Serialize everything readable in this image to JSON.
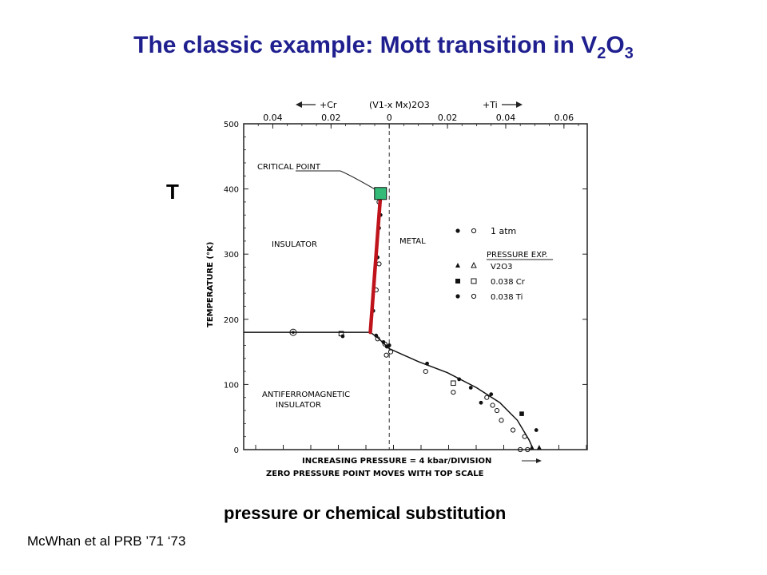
{
  "slide": {
    "title_main": "The classic example: Mott transition in V",
    "title_sub1": "2",
    "title_mid": "O",
    "title_sub2": "3",
    "t_label": "T",
    "caption": "pressure or chemical substitution",
    "citation": "McWhan et al PRB ’71 ‘73"
  },
  "chart_data": {
    "type": "scatter",
    "top_axis": {
      "left_arrow_label": "+Cr",
      "center_label": "(V1-x Mx)2O3",
      "right_arrow_label": "+Ti",
      "ticks": [
        {
          "value": -0.04,
          "label": "0.04"
        },
        {
          "value": -0.02,
          "label": "0.02"
        },
        {
          "value": 0,
          "label": "0"
        },
        {
          "value": 0.02,
          "label": "0.02"
        },
        {
          "value": 0.04,
          "label": "0.04"
        },
        {
          "value": 0.06,
          "label": "0.06"
        }
      ],
      "xlim": [
        -0.05,
        0.068
      ]
    },
    "ylabel": "TEMPERATURE (°K)",
    "yticks": [
      0,
      100,
      200,
      300,
      400,
      500
    ],
    "ylim": [
      0,
      500
    ],
    "xlabel_line1": "INCREASING PRESSURE = 4 kbar/DIVISION",
    "xlabel_line2": "ZERO PRESSURE POINT MOVES WITH TOP SCALE",
    "regions": [
      {
        "label": "INSULATOR"
      },
      {
        "label": "METAL"
      },
      {
        "label_line1": "ANTIFERROMAGNETIC",
        "label_line2": "INSULATOR"
      }
    ],
    "annotation": "CRITICAL POINT",
    "legend": {
      "row1": "1 atm",
      "header": "PRESSURE EXP.",
      "row2": "V2O3",
      "row3": "0.038 Cr",
      "row4": "0.038 Ti"
    },
    "critical_point": {
      "x": -0.003,
      "T": 390
    },
    "transition_line": [
      {
        "x": -0.0065,
        "T": 180
      },
      {
        "x": -0.003,
        "T": 390
      }
    ],
    "afm_boundary": [
      {
        "x": -0.05,
        "T": 180
      },
      {
        "x": -0.0065,
        "T": 180
      },
      {
        "x": -0.004,
        "T": 172
      },
      {
        "x": 0.0,
        "T": 155
      },
      {
        "x": 0.01,
        "T": 135
      },
      {
        "x": 0.02,
        "T": 118
      },
      {
        "x": 0.03,
        "T": 95
      },
      {
        "x": 0.038,
        "T": 72
      },
      {
        "x": 0.044,
        "T": 45
      },
      {
        "x": 0.048,
        "T": 15
      },
      {
        "x": 0.0495,
        "T": 0
      }
    ],
    "points": [
      {
        "x": -0.033,
        "T": 180,
        "m": "bullseye"
      },
      {
        "x": -0.0165,
        "T": 178,
        "m": "open-square"
      },
      {
        "x": -0.016,
        "T": 174,
        "m": "filled"
      },
      {
        "x": -0.0045,
        "T": 175,
        "m": "filled"
      },
      {
        "x": -0.004,
        "T": 170,
        "m": "open"
      },
      {
        "x": -0.0055,
        "T": 213,
        "m": "filled"
      },
      {
        "x": -0.0045,
        "T": 245,
        "m": "open"
      },
      {
        "x": -0.004,
        "T": 295,
        "m": "filled"
      },
      {
        "x": -0.0035,
        "T": 285,
        "m": "open"
      },
      {
        "x": -0.0035,
        "T": 340,
        "m": "filled"
      },
      {
        "x": -0.003,
        "T": 360,
        "m": "filled"
      },
      {
        "x": -0.0035,
        "T": 380,
        "m": "open"
      },
      {
        "x": -0.002,
        "T": 165,
        "m": "filled"
      },
      {
        "x": -0.0015,
        "T": 162,
        "m": "open"
      },
      {
        "x": -0.0008,
        "T": 158,
        "m": "filled"
      },
      {
        "x": -0.001,
        "T": 145,
        "m": "open"
      },
      {
        "x": 0.0,
        "T": 160,
        "m": "filled"
      },
      {
        "x": 0.0005,
        "T": 150,
        "m": "open"
      },
      {
        "x": 0.013,
        "T": 132,
        "m": "filled"
      },
      {
        "x": 0.0125,
        "T": 120,
        "m": "open"
      },
      {
        "x": 0.024,
        "T": 108,
        "m": "filled"
      },
      {
        "x": 0.022,
        "T": 102,
        "m": "open-square"
      },
      {
        "x": 0.022,
        "T": 88,
        "m": "open"
      },
      {
        "x": 0.028,
        "T": 95,
        "m": "filled"
      },
      {
        "x": 0.0315,
        "T": 72,
        "m": "filled"
      },
      {
        "x": 0.0335,
        "T": 80,
        "m": "open"
      },
      {
        "x": 0.035,
        "T": 85,
        "m": "filled"
      },
      {
        "x": 0.0355,
        "T": 68,
        "m": "open"
      },
      {
        "x": 0.037,
        "T": 60,
        "m": "open"
      },
      {
        "x": 0.0385,
        "T": 45,
        "m": "open"
      },
      {
        "x": 0.0455,
        "T": 55,
        "m": "filled-square"
      },
      {
        "x": 0.0425,
        "T": 30,
        "m": "open"
      },
      {
        "x": 0.0465,
        "T": 20,
        "m": "open"
      },
      {
        "x": 0.0505,
        "T": 30,
        "m": "filled"
      },
      {
        "x": 0.045,
        "T": 0,
        "m": "open"
      },
      {
        "x": 0.0475,
        "T": 0,
        "m": "open"
      },
      {
        "x": 0.049,
        "T": 0,
        "m": "filled-triangle"
      },
      {
        "x": 0.0515,
        "T": 0,
        "m": "filled-triangle"
      }
    ]
  }
}
